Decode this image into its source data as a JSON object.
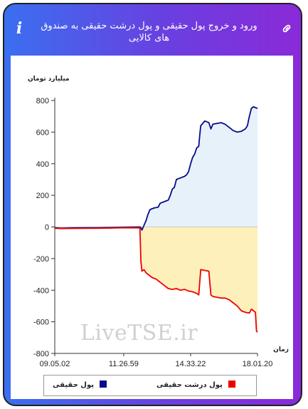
{
  "header": {
    "title": "ورود و خروج پول حقیقی و پول درشت حقیقی به صندوق های کالایی",
    "info_icon": "info-icon",
    "link_icon": "link-icon"
  },
  "watermark": "LiveTSE.ir",
  "colors": {
    "real_money": "#0a0a8a",
    "real_money_fill": "#e6f1fa",
    "big_real_money": "#ee0000",
    "big_real_money_fill": "#fdf0bb",
    "zero_line": "#cccccc"
  },
  "chart_data": {
    "type": "area",
    "title": "",
    "ylabel": "میلیارد تومان",
    "xlabel": "زمان",
    "ylim": [
      -800,
      800
    ],
    "yticks": [
      800,
      600,
      400,
      200,
      0,
      -200,
      -400,
      -600,
      -800
    ],
    "xlim": [
      0,
      100
    ],
    "xticks": [
      {
        "pos": 0,
        "label": "09.05.02"
      },
      {
        "pos": 34,
        "label": "11.26.59"
      },
      {
        "pos": 67,
        "label": "14.33.22"
      },
      {
        "pos": 100,
        "label": "18.01.20"
      }
    ],
    "grid": false,
    "legend_position": "bottom",
    "series": [
      {
        "name": "پول حقیقی",
        "color": "#0a0a8a",
        "points": [
          [
            0,
            -5
          ],
          [
            3,
            -8
          ],
          [
            10,
            -6
          ],
          [
            20,
            -5
          ],
          [
            27,
            -4
          ],
          [
            34,
            -2
          ],
          [
            42,
            0
          ],
          [
            42.5,
            -5
          ],
          [
            43,
            -20
          ],
          [
            44,
            10
          ],
          [
            45,
            40
          ],
          [
            46,
            80
          ],
          [
            47,
            110
          ],
          [
            49,
            120
          ],
          [
            51,
            125
          ],
          [
            52,
            150
          ],
          [
            54,
            160
          ],
          [
            56,
            170
          ],
          [
            57,
            200
          ],
          [
            58,
            240
          ],
          [
            59,
            250
          ],
          [
            60,
            300
          ],
          [
            62,
            310
          ],
          [
            64,
            320
          ],
          [
            65,
            330
          ],
          [
            66,
            350
          ],
          [
            67,
            400
          ],
          [
            68,
            440
          ],
          [
            69,
            460
          ],
          [
            70,
            500
          ],
          [
            71,
            510
          ],
          [
            71.5,
            580
          ],
          [
            72,
            640
          ],
          [
            74,
            670
          ],
          [
            76,
            660
          ],
          [
            77,
            620
          ],
          [
            78,
            650
          ],
          [
            80,
            655
          ],
          [
            82,
            660
          ],
          [
            84,
            650
          ],
          [
            86,
            630
          ],
          [
            88,
            610
          ],
          [
            90,
            600
          ],
          [
            92,
            605
          ],
          [
            94,
            620
          ],
          [
            95,
            640
          ],
          [
            96,
            700
          ],
          [
            97,
            750
          ],
          [
            98,
            760
          ],
          [
            99,
            755
          ],
          [
            100,
            750
          ]
        ]
      },
      {
        "name": "پول درشت حقیقی",
        "color": "#ee0000",
        "points": [
          [
            0,
            -8
          ],
          [
            3,
            -10
          ],
          [
            10,
            -9
          ],
          [
            20,
            -8
          ],
          [
            27,
            -7
          ],
          [
            34,
            -5
          ],
          [
            42,
            -6
          ],
          [
            42.5,
            -220
          ],
          [
            43,
            -280
          ],
          [
            44,
            -270
          ],
          [
            45,
            -290
          ],
          [
            46,
            -300
          ],
          [
            48,
            -320
          ],
          [
            50,
            -330
          ],
          [
            52,
            -350
          ],
          [
            54,
            -370
          ],
          [
            56,
            -390
          ],
          [
            58,
            -395
          ],
          [
            60,
            -390
          ],
          [
            62,
            -400
          ],
          [
            64,
            -395
          ],
          [
            66,
            -405
          ],
          [
            68,
            -410
          ],
          [
            70,
            -420
          ],
          [
            71,
            -430
          ],
          [
            72,
            -270
          ],
          [
            74,
            -275
          ],
          [
            76,
            -280
          ],
          [
            77,
            -430
          ],
          [
            78,
            -440
          ],
          [
            80,
            -445
          ],
          [
            82,
            -450
          ],
          [
            84,
            -450
          ],
          [
            86,
            -460
          ],
          [
            88,
            -480
          ],
          [
            90,
            -500
          ],
          [
            92,
            -530
          ],
          [
            94,
            -540
          ],
          [
            96,
            -545
          ],
          [
            97,
            -520
          ],
          [
            98,
            -530
          ],
          [
            99,
            -540
          ],
          [
            99.5,
            -660
          ],
          [
            100,
            -665
          ]
        ]
      }
    ]
  }
}
